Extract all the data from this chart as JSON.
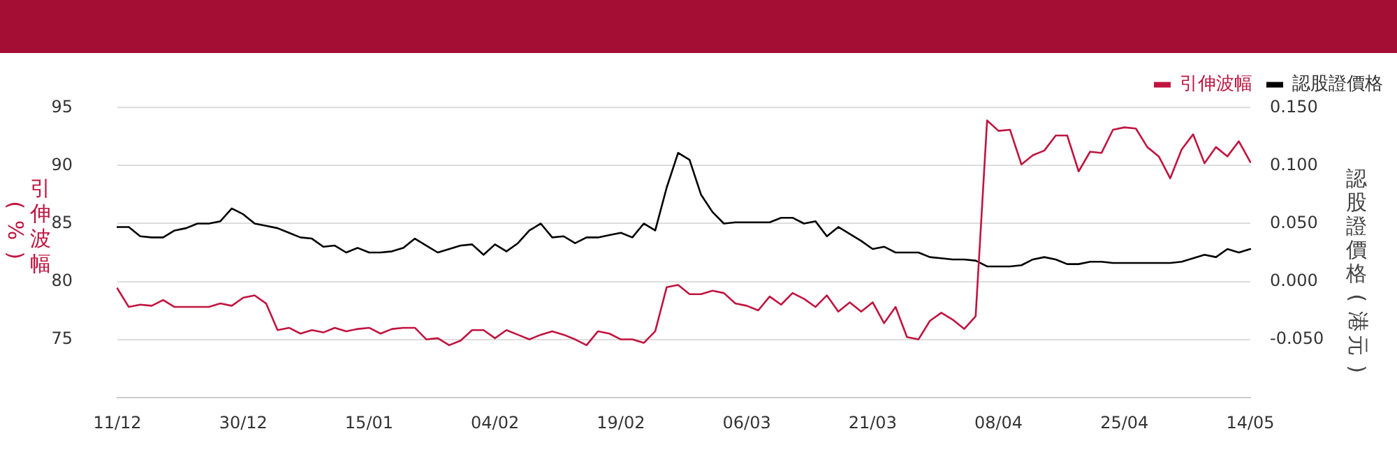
{
  "chart_data": {
    "type": "line",
    "ylabel": "引伸波幅(%)",
    "y2label": "認股證價格(港元)",
    "categories": [
      "11/12",
      null,
      null,
      null,
      null,
      null,
      null,
      null,
      null,
      null,
      null,
      "30/12",
      null,
      null,
      null,
      null,
      null,
      null,
      null,
      null,
      null,
      null,
      "15/01",
      null,
      null,
      null,
      null,
      null,
      null,
      null,
      null,
      null,
      null,
      "04/02",
      null,
      null,
      null,
      null,
      null,
      null,
      null,
      null,
      null,
      null,
      "19/02",
      null,
      null,
      null,
      null,
      null,
      null,
      null,
      null,
      null,
      null,
      "06/03",
      null,
      null,
      null,
      null,
      null,
      null,
      null,
      null,
      null,
      null,
      "21/03",
      null,
      null,
      null,
      null,
      null,
      null,
      null,
      null,
      null,
      null,
      "08/04",
      null,
      null,
      null,
      null,
      null,
      null,
      null,
      null,
      null,
      null,
      "25/04",
      null,
      null,
      null,
      null,
      null,
      null,
      null,
      null,
      null,
      null,
      "14/05"
    ],
    "series": [
      {
        "name": "引伸波幅",
        "color": "#c0143f",
        "values": [
          79.4,
          77.8,
          78.0,
          77.9,
          78.4,
          77.8,
          77.8,
          77.8,
          77.8,
          78.1,
          77.9,
          78.6,
          78.8,
          78.1,
          75.8,
          76.0,
          75.5,
          75.8,
          75.6,
          76.0,
          75.7,
          75.9,
          76.0,
          75.5,
          75.9,
          76.0,
          76.0,
          75.0,
          75.1,
          74.5,
          74.9,
          75.8,
          75.8,
          75.1,
          75.8,
          75.4,
          75.0,
          75.4,
          75.7,
          75.4,
          75.0,
          74.5,
          75.7,
          75.5,
          75.0,
          75.0,
          74.7,
          75.7,
          79.5,
          79.7,
          78.9,
          78.9,
          79.2,
          79.0,
          78.1,
          77.9,
          77.5,
          78.7,
          78.0,
          79.0,
          78.5,
          77.8,
          78.8,
          77.4,
          78.2,
          77.4,
          78.2,
          76.4,
          77.8,
          75.2,
          75.0,
          76.6,
          77.3,
          76.7,
          75.9,
          77.0,
          93.9,
          93.0,
          93.1,
          90.1,
          90.9,
          91.3,
          92.6,
          92.6,
          89.5,
          91.2,
          91.1,
          93.1,
          93.3,
          93.2,
          91.6,
          90.8,
          88.9,
          91.4,
          92.7,
          90.2,
          91.6,
          90.8,
          92.1,
          90.3
        ]
      },
      {
        "name": "認股證價格",
        "color": "#000000",
        "axis": "y2",
        "values": [
          0.047,
          0.047,
          0.039,
          0.038,
          0.038,
          0.044,
          0.046,
          0.05,
          0.05,
          0.052,
          0.063,
          0.058,
          0.05,
          0.048,
          0.046,
          0.042,
          0.038,
          0.037,
          0.03,
          0.031,
          0.025,
          0.029,
          0.025,
          0.025,
          0.026,
          0.029,
          0.037,
          0.031,
          0.025,
          0.028,
          0.031,
          0.032,
          0.023,
          0.032,
          0.026,
          0.033,
          0.044,
          0.05,
          0.038,
          0.039,
          0.033,
          0.038,
          0.038,
          0.04,
          0.042,
          0.038,
          0.05,
          0.044,
          0.081,
          0.111,
          0.105,
          0.075,
          0.06,
          0.05,
          0.051,
          0.051,
          0.051,
          0.051,
          0.055,
          0.055,
          0.05,
          0.052,
          0.039,
          0.047,
          0.041,
          0.035,
          0.028,
          0.03,
          0.025,
          0.025,
          0.025,
          0.021,
          0.02,
          0.019,
          0.019,
          0.018,
          0.013,
          0.013,
          0.013,
          0.014,
          0.019,
          0.021,
          0.019,
          0.015,
          0.015,
          0.017,
          0.017,
          0.016,
          0.016,
          0.016,
          0.016,
          0.016,
          0.016,
          0.017,
          0.02,
          0.023,
          0.021,
          0.028,
          0.025,
          0.028
        ]
      }
    ],
    "ylim": [
      70,
      95
    ],
    "yticks": [
      75,
      80,
      85,
      90,
      95
    ],
    "y2lim": [
      -0.1,
      0.15
    ],
    "y2ticks": [
      {
        "value": -0.05,
        "label": "-0.050"
      },
      {
        "value": 0,
        "label": "0.000"
      },
      {
        "value": 0.05,
        "label": "0.050"
      },
      {
        "value": 0.1,
        "label": "0.100"
      },
      {
        "value": 0.15,
        "label": "0.150"
      }
    ],
    "grid": "y",
    "legend": "top right",
    "marker": "none",
    "line_style": "solid"
  }
}
